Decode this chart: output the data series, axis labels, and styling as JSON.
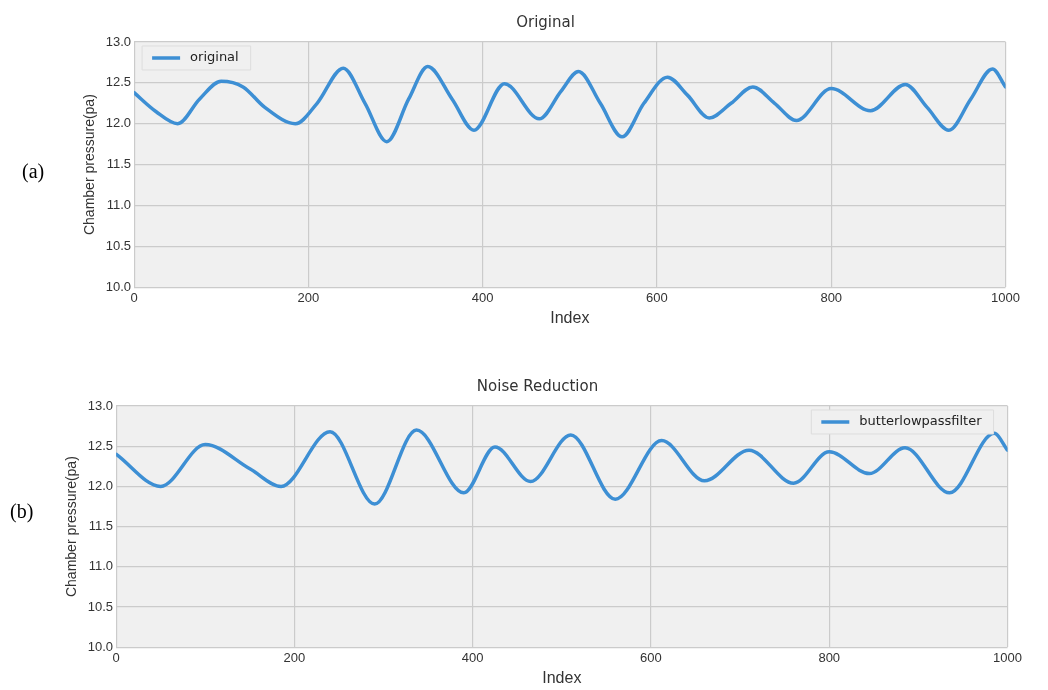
{
  "chart_data": [
    {
      "type": "line",
      "title": "Original",
      "xlabel": "Index",
      "ylabel": "Chamber pressure(pa)",
      "annotations": [
        "(a)"
      ],
      "legend": "top left",
      "grid": true,
      "xlim": [
        0,
        1000
      ],
      "xticks": [
        0,
        200,
        400,
        600,
        800,
        1000
      ],
      "ylim": [
        10,
        13
      ],
      "yticks": [
        {
          "value": 10,
          "label": "10.0"
        },
        {
          "value": 10.5,
          "label": "10.5"
        },
        {
          "value": 11,
          "label": "11.0"
        },
        {
          "value": 11.5,
          "label": "11.5"
        },
        {
          "value": 12,
          "label": "12.0"
        },
        {
          "value": 12.5,
          "label": "12.5"
        },
        {
          "value": 13,
          "label": "13.0"
        }
      ],
      "series": [
        {
          "name": "original",
          "color": "#3d8fd4",
          "x": [
            0,
            25,
            50,
            75,
            100,
            125,
            150,
            185,
            210,
            240,
            265,
            290,
            315,
            337,
            365,
            390,
            425,
            465,
            490,
            510,
            535,
            560,
            585,
            612,
            635,
            660,
            685,
            710,
            735,
            760,
            800,
            845,
            885,
            910,
            935,
            960,
            985,
            1000
          ],
          "values": [
            12.38,
            12.15,
            12.0,
            12.3,
            12.52,
            12.45,
            12.2,
            12.0,
            12.25,
            12.68,
            12.25,
            11.78,
            12.3,
            12.7,
            12.3,
            11.92,
            12.49,
            12.06,
            12.4,
            12.64,
            12.25,
            11.84,
            12.25,
            12.57,
            12.35,
            12.07,
            12.25,
            12.45,
            12.25,
            12.04,
            12.43,
            12.16,
            12.48,
            12.2,
            11.92,
            12.3,
            12.67,
            12.45
          ]
        }
      ]
    },
    {
      "type": "line",
      "title": "Noise Reduction",
      "xlabel": "Index",
      "ylabel": "Chamber pressure(pa)",
      "annotations": [
        "(b)"
      ],
      "legend": "top right",
      "grid": true,
      "xlim": [
        0,
        1000
      ],
      "xticks": [
        0,
        200,
        400,
        600,
        800,
        1000
      ],
      "ylim": [
        10,
        13
      ],
      "yticks": [
        {
          "value": 10,
          "label": "10.0"
        },
        {
          "value": 10.5,
          "label": "10.5"
        },
        {
          "value": 11,
          "label": "11.0"
        },
        {
          "value": 11.5,
          "label": "11.5"
        },
        {
          "value": 12,
          "label": "12.0"
        },
        {
          "value": 12.5,
          "label": "12.5"
        },
        {
          "value": 13,
          "label": "13.0"
        }
      ],
      "series": [
        {
          "name": "butterlowpassfilter",
          "color": "#3d8fd4",
          "x": [
            0,
            50,
            100,
            150,
            185,
            240,
            290,
            337,
            390,
            425,
            465,
            510,
            560,
            612,
            660,
            710,
            760,
            800,
            845,
            885,
            935,
            985,
            1000
          ],
          "values": [
            12.4,
            12.0,
            12.52,
            12.22,
            12.0,
            12.68,
            11.78,
            12.7,
            11.92,
            12.49,
            12.06,
            12.64,
            11.84,
            12.57,
            12.07,
            12.45,
            12.04,
            12.43,
            12.16,
            12.48,
            11.92,
            12.66,
            12.45
          ]
        }
      ]
    }
  ]
}
